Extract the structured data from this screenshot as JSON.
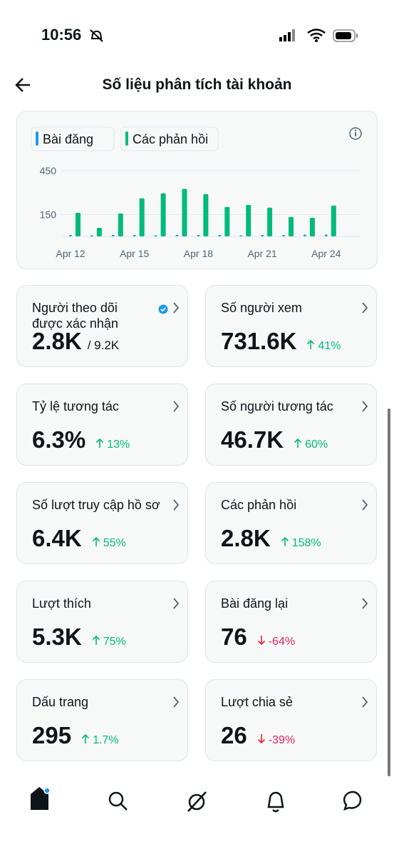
{
  "status_bar": {
    "time": "10:56"
  },
  "header": {
    "title": "Số liệu phân tích tài khoản"
  },
  "chart_data": {
    "type": "bar",
    "categories": [
      "Apr 12",
      null,
      null,
      "Apr 15",
      null,
      null,
      "Apr 18",
      null,
      null,
      "Apr 21",
      null,
      null,
      "Apr 24"
    ],
    "series": [
      {
        "name": "Bài đăng",
        "color": "#1d9bf0",
        "values": [
          10,
          8,
          10,
          10,
          8,
          10,
          10,
          10,
          8,
          10,
          10,
          12,
          12
        ]
      },
      {
        "name": "Các phản hồi",
        "color": "#00ba7c",
        "values": [
          162,
          59,
          157,
          261,
          295,
          325,
          290,
          202,
          216,
          197,
          133,
          128,
          211
        ]
      }
    ],
    "ylim": [
      0,
      450
    ],
    "yticks": [
      150,
      450
    ],
    "grid": true
  },
  "cards": [
    {
      "label": "Người theo dõi được xác nhận",
      "value": "2.8K",
      "total": "/ 9.2K",
      "verified": true
    },
    {
      "label": "Số người xem",
      "value": "731.6K",
      "change": "41%",
      "direction": "up"
    },
    {
      "label": "Tỷ lệ tương tác",
      "value": "6.3%",
      "change": "13%",
      "direction": "up"
    },
    {
      "label": "Số người tương tác",
      "value": "46.7K",
      "change": "60%",
      "direction": "up"
    },
    {
      "label": "Số lượt truy cập hồ sơ",
      "value": "6.4K",
      "change": "55%",
      "direction": "up"
    },
    {
      "label": "Các phản hồi",
      "value": "2.8K",
      "change": "158%",
      "direction": "up"
    },
    {
      "label": "Lượt thích",
      "value": "5.3K",
      "change": "75%",
      "direction": "up"
    },
    {
      "label": "Bài đăng lại",
      "value": "76",
      "change": "-64%",
      "direction": "down"
    },
    {
      "label": "Dấu trang",
      "value": "295",
      "change": "1.7%",
      "direction": "up"
    },
    {
      "label": "Lượt chia sẻ",
      "value": "26",
      "change": "-39%",
      "direction": "down"
    }
  ]
}
